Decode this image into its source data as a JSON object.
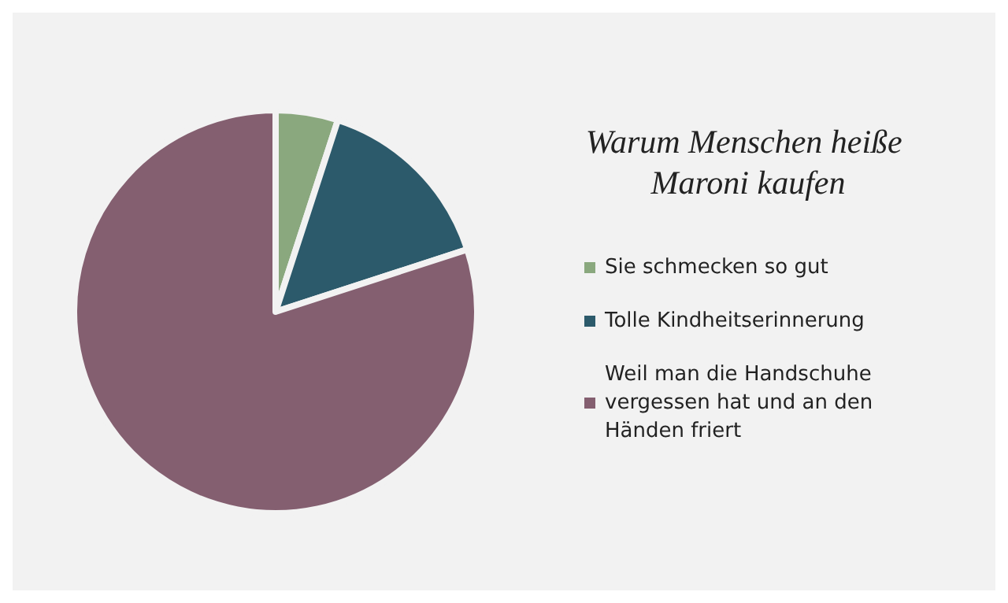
{
  "chart_data": {
    "type": "pie",
    "title": "Warum Menschen heiße Maroni kaufen",
    "categories": [
      "Sie schmecken so gut",
      "Tolle Kindheitserinnerung",
      "Weil man die Handschuhe vergessen hat und an den Händen friert"
    ],
    "values": [
      5,
      15,
      80
    ],
    "colors": [
      "#8aa87e",
      "#2c5a6b",
      "#845f70"
    ],
    "legend": "right"
  }
}
